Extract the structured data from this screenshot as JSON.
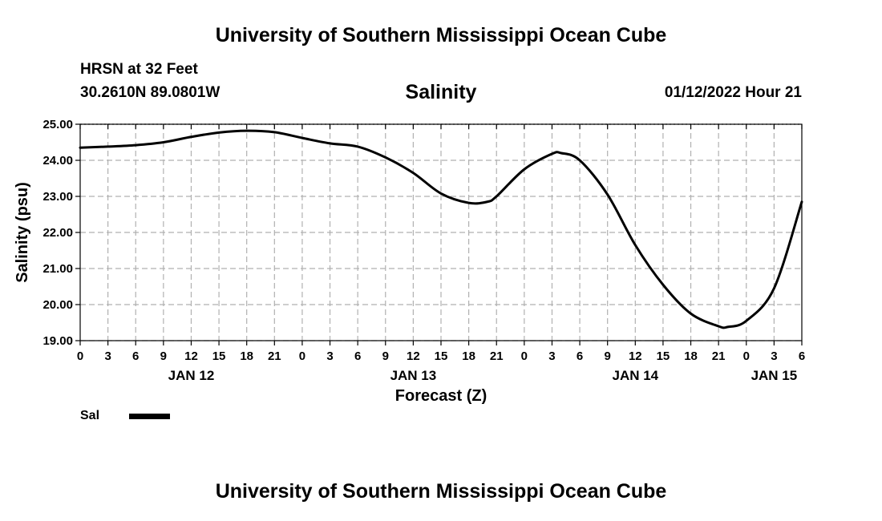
{
  "header": {
    "title": "University of Southern Mississippi Ocean Cube",
    "station": "HRSN at 32 Feet",
    "coordinates": "30.2610N  89.0801W",
    "chart_title": "Salinity",
    "datetime": "01/12/2022 Hour 21"
  },
  "footer": {
    "title": "University of Southern Mississippi Ocean Cube"
  },
  "legend": {
    "label": "Sal"
  },
  "chart_data": {
    "type": "line",
    "title": "Salinity",
    "xlabel": "Forecast (Z)",
    "ylabel": "Salinity (psu)",
    "ylim": [
      19.0,
      25.0
    ],
    "xlim": [
      0,
      78
    ],
    "x_unit": "hours since JAN 12 00Z",
    "grid": true,
    "y_ticks": [
      "19.00",
      "20.00",
      "21.00",
      "22.00",
      "23.00",
      "24.00",
      "25.00"
    ],
    "x_tick_labels": [
      "0",
      "3",
      "6",
      "9",
      "12",
      "15",
      "18",
      "21",
      "0",
      "3",
      "6",
      "9",
      "12",
      "15",
      "18",
      "21",
      "0",
      "3",
      "6",
      "9",
      "12",
      "15",
      "18",
      "21",
      "0",
      "3",
      "6"
    ],
    "day_labels": [
      {
        "text": "JAN 12",
        "hour": 12
      },
      {
        "text": "JAN 13",
        "hour": 36
      },
      {
        "text": "JAN 14",
        "hour": 60
      },
      {
        "text": "JAN 15",
        "hour": 75
      }
    ],
    "series": [
      {
        "name": "Sal",
        "color": "#000000",
        "x": [
          0,
          3,
          6,
          9,
          12,
          15,
          18,
          21,
          24,
          27,
          30,
          33,
          36,
          39,
          42,
          44,
          45,
          48,
          51,
          52,
          54,
          57,
          60,
          63,
          66,
          69,
          70,
          72,
          75,
          78
        ],
        "values": [
          24.35,
          24.38,
          24.42,
          24.5,
          24.65,
          24.77,
          24.82,
          24.78,
          24.62,
          24.47,
          24.38,
          24.08,
          23.65,
          23.08,
          22.82,
          22.85,
          23.0,
          23.75,
          24.18,
          24.2,
          24.0,
          23.05,
          21.65,
          20.55,
          19.75,
          19.4,
          19.38,
          19.55,
          20.45,
          22.85
        ]
      }
    ]
  }
}
